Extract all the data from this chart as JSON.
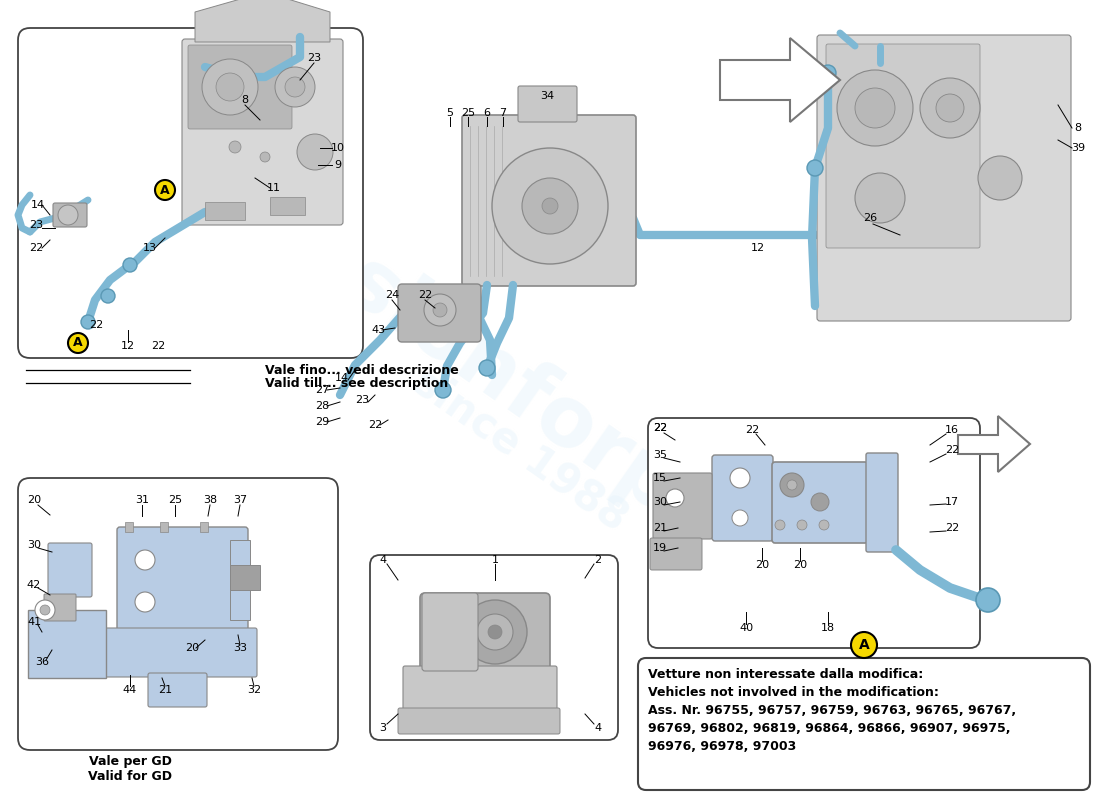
{
  "bg_color": "#ffffff",
  "diagram_color": "#7eb8d4",
  "diagram_color_dark": "#5a98b4",
  "gray_light": "#d8d8d8",
  "gray_mid": "#b8b8b8",
  "gray_dark": "#888888",
  "blue_part": "#b8cce4",
  "yellow": "#f5d800",
  "black": "#000000",
  "callout1_it": "Vale fino... vedi descrizione",
  "callout1_en": "Valid till... see description",
  "callout2_it": "Vale per GD",
  "callout2_en": "Valid for GD",
  "info_line1": "Vetture non interessate dalla modifica:",
  "info_line2": "Vehicles not involved in the modification:",
  "info_line3": "Ass. Nr. 96755, 96757, 96759, 96763, 96765, 96767,",
  "info_line4": "96769, 96802, 96819, 96864, 96866, 96907, 96975,",
  "info_line5": "96976, 96978, 97003"
}
